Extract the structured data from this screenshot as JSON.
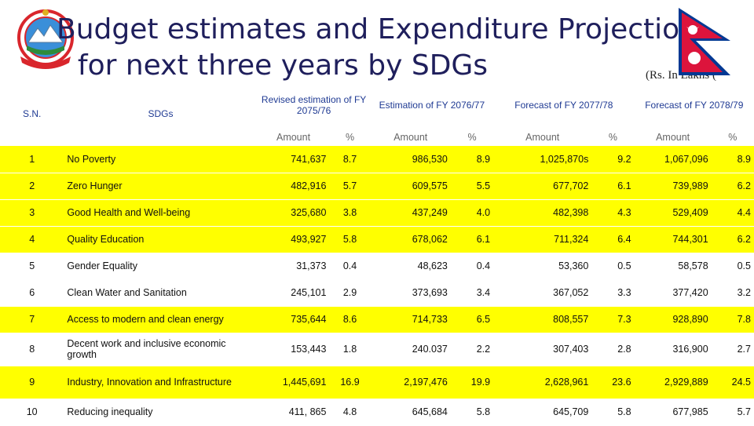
{
  "title": {
    "line1": "Budget estimates and Expenditure Projection",
    "line2": "for next three years by SDGs",
    "units": "(Rs. In Lakhs ("
  },
  "logo": {
    "name": "nepal-government-emblem"
  },
  "flag": {
    "name": "nepal-flag",
    "colors": {
      "crimson": "#dc143c",
      "blue": "#003893",
      "white": "#ffffff"
    }
  },
  "colors": {
    "title": "#1f1f5c",
    "header": "#1f3a93",
    "highlight": "#ffff00"
  },
  "table": {
    "headers": {
      "sn": "S.N.",
      "sdgs": "SDGs",
      "col1": "Revised estimation of FY 2075/76",
      "col2": "Estimation of FY 2076/77",
      "col3": "Forecast of FY 2077/78",
      "col4": "Forecast of FY 2078/79",
      "amount": "Amount",
      "percent": "%"
    },
    "rows": [
      {
        "sn": "1",
        "sdg": "No Poverty",
        "a1": "741,637",
        "p1": "8.7",
        "a2": "986,530",
        "p2": "8.9",
        "a3": "1,025,870s",
        "p3": "9.2",
        "a4": "1,067,096",
        "p4": "8.9"
      },
      {
        "sn": "2",
        "sdg": "Zero Hunger",
        "a1": "482,916",
        "p1": "5.7",
        "a2": "609,575",
        "p2": "5.5",
        "a3": "677,702",
        "p3": "6.1",
        "a4": "739,989",
        "p4": "6.2"
      },
      {
        "sn": "3",
        "sdg": "Good Health and Well-being",
        "a1": "325,680",
        "p1": "3.8",
        "a2": "437,249",
        "p2": "4.0",
        "a3": "482,398",
        "p3": "4.3",
        "a4": "529,409",
        "p4": "4.4"
      },
      {
        "sn": "4",
        "sdg": "Quality Education",
        "a1": "493,927",
        "p1": "5.8",
        "a2": "678,062",
        "p2": "6.1",
        "a3": "711,324",
        "p3": "6.4",
        "a4": "744,301",
        "p4": "6.2"
      },
      {
        "sn": "5",
        "sdg": "Gender Equality",
        "a1": "31,373",
        "p1": "0.4",
        "a2": "48,623",
        "p2": "0.4",
        "a3": "53,360",
        "p3": "0.5",
        "a4": "58,578",
        "p4": "0.5"
      },
      {
        "sn": "6",
        "sdg": "Clean Water and Sanitation",
        "a1": "245,101",
        "p1": "2.9",
        "a2": "373,693",
        "p2": "3.4",
        "a3": "367,052",
        "p3": "3.3",
        "a4": "377,420",
        "p4": "3.2"
      },
      {
        "sn": "7",
        "sdg": "Access to modern and clean energy",
        "a1": "735,644",
        "p1": "8.6",
        "a2": "714,733",
        "p2": "6.5",
        "a3": "808,557",
        "p3": "7.3",
        "a4": "928,890",
        "p4": "7.8"
      },
      {
        "sn": "8",
        "sdg": "Decent work and inclusive economic growth",
        "a1": "153,443",
        "p1": "1.8",
        "a2": "240.037",
        "p2": "2.2",
        "a3": "307,403",
        "p3": "2.8",
        "a4": "316,900",
        "p4": "2.7"
      },
      {
        "sn": "9",
        "sdg": "Industry, Innovation and Infrastructure",
        "a1": "1,445,691",
        "p1": "16.9",
        "a2": "2,197,476",
        "p2": "19.9",
        "a3": "2,628,961",
        "p3": "23.6",
        "a4": "2,929,889",
        "p4": "24.5"
      },
      {
        "sn": "10",
        "sdg": "Reducing inequality",
        "a1": "411, 865",
        "p1": "4.8",
        "a2": "645,684",
        "p2": "5.8",
        "a3": "645,709",
        "p3": "5.8",
        "a4": "677,985",
        "p4": "5.7"
      }
    ]
  }
}
